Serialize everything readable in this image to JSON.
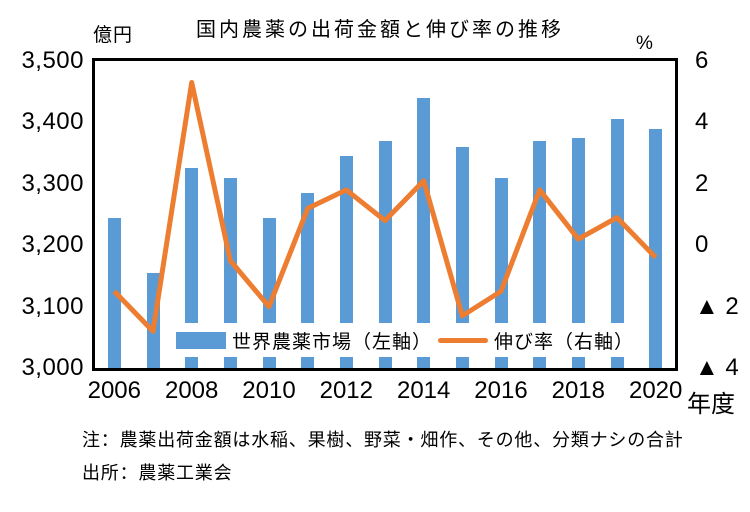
{
  "page": {
    "background": "#ffffff"
  },
  "chart": {
    "title": "国内農薬の出荷金額と伸び率の推移",
    "left_axis_unit": "億円",
    "right_axis_unit": "%",
    "x_axis_unit": "年度",
    "notes": [
      "注：農薬出荷金額は水稲、果樹、野菜・畑作、その他、分類ナシの合計",
      "出所：農薬工業会"
    ]
  },
  "chart_data": {
    "type": "bar+line combo (dual axis)",
    "categories": [
      "2006",
      "2007",
      "2008",
      "2009",
      "2010",
      "2011",
      "2012",
      "2013",
      "2014",
      "2015",
      "2016",
      "2017",
      "2018",
      "2019",
      "2020"
    ],
    "x_tick_labels": [
      "2006",
      "2008",
      "2010",
      "2012",
      "2014",
      "2016",
      "2018",
      "2020"
    ],
    "series": [
      {
        "name": "世界農薬市場（左軸）",
        "type": "bar",
        "axis": "left",
        "color": "#5B9BD5",
        "values": [
          3245,
          3155,
          3325,
          3310,
          3245,
          3285,
          3345,
          3370,
          3440,
          3360,
          3310,
          3370,
          3375,
          3405,
          3390
        ]
      },
      {
        "name": "伸び率（右軸）",
        "type": "line",
        "axis": "right",
        "color": "#ED7D31",
        "values": [
          -1.5,
          -2.8,
          5.3,
          -0.5,
          -2.0,
          1.2,
          1.8,
          0.8,
          2.1,
          -2.3,
          -1.5,
          1.8,
          0.2,
          0.9,
          -0.4
        ]
      }
    ],
    "left_axis": {
      "unit": "億円",
      "min": 3000,
      "max": 3500,
      "tick_step": 100,
      "tick_labels": [
        "3,000",
        "3,100",
        "3,200",
        "3,300",
        "3,400",
        "3,500"
      ]
    },
    "right_axis": {
      "unit": "%",
      "min": -4,
      "max": 6,
      "tick_step": 2,
      "tick_labels": [
        "▲ 4",
        "▲ 2",
        "0",
        "2",
        "4",
        "6"
      ]
    },
    "grid": false,
    "legend_position": "inside-bottom",
    "plot_border_color": "#000000"
  }
}
